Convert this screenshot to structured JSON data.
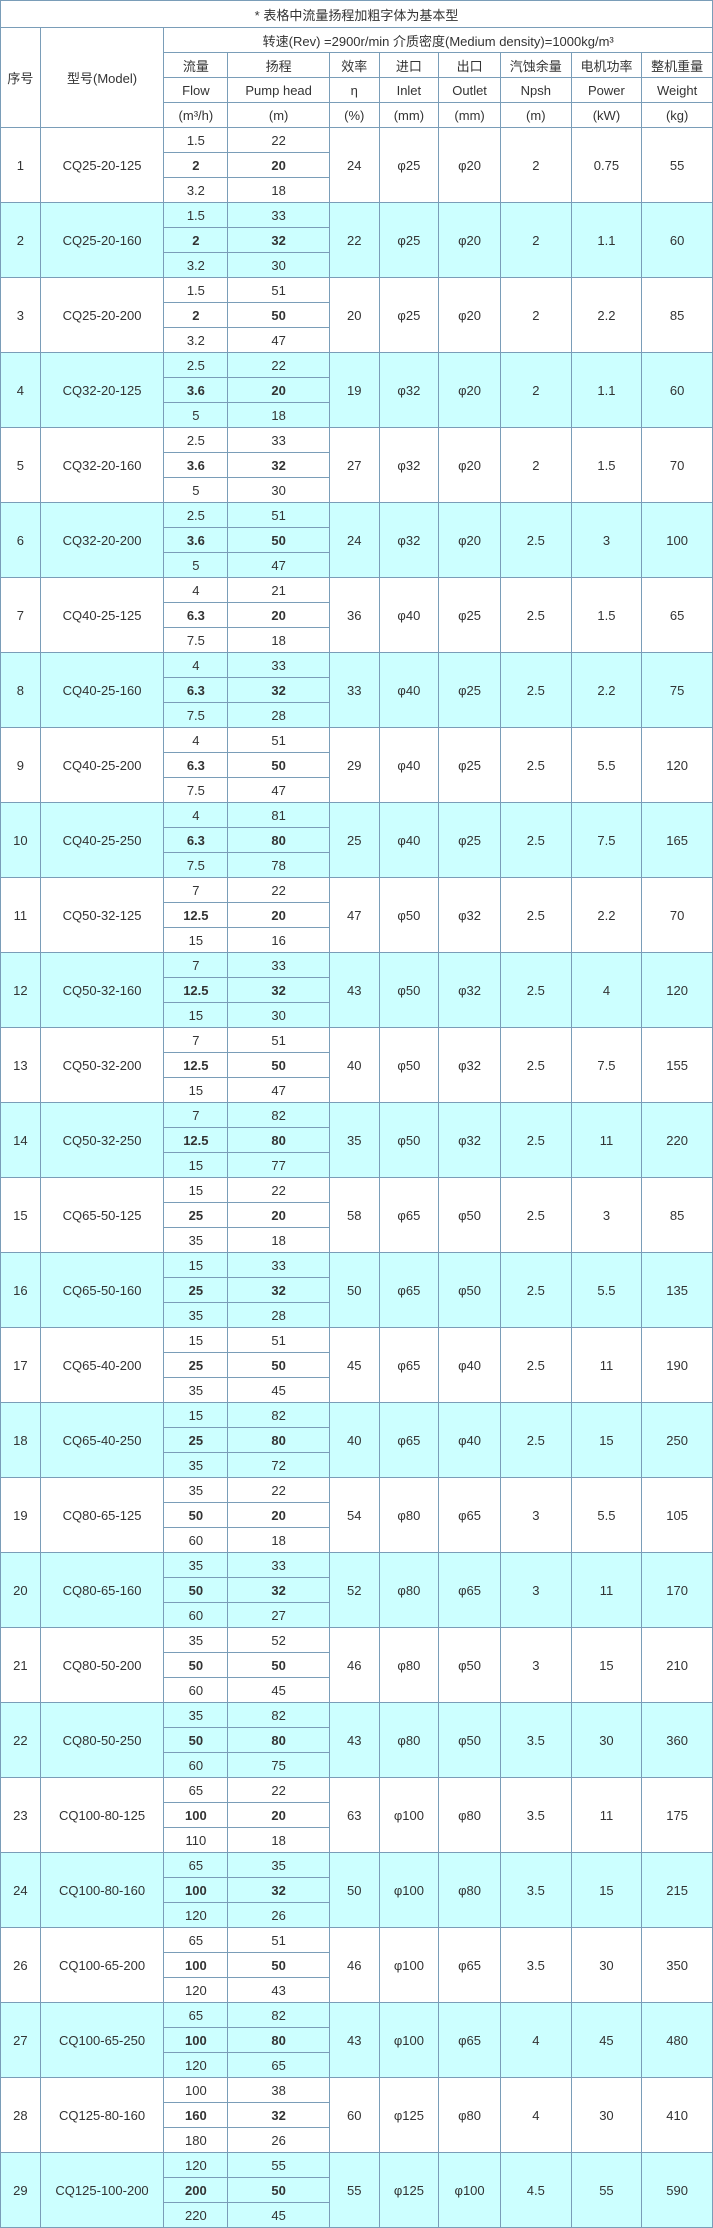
{
  "caption": "* 表格中流量扬程加粗字体为基本型",
  "spec_line": "转速(Rev) =2900r/min   介质密度(Medium density)=1000kg/m³",
  "headers": {
    "h1": "序号",
    "h2": "型号(Model)",
    "c_flow_cn": "流量",
    "c_head_cn": "扬程",
    "c_eff_cn": "效率",
    "c_in_cn": "进口",
    "c_out_cn": "出口",
    "c_npsh_cn": "汽蚀余量",
    "c_pow_cn": "电机功率",
    "c_wt_cn": "整机重量",
    "c_flow_en": "Flow",
    "c_head_en": "Pump head",
    "c_eff_en": "η",
    "c_in_en": "Inlet",
    "c_out_en": "Outlet",
    "c_npsh_en": "Npsh",
    "c_pow_en": "Power",
    "c_wt_en": "Weight",
    "u_flow": "(m³/h)",
    "u_head": "(m)",
    "u_eff": "(%)",
    "u_in": "(mm)",
    "u_out": "(mm)",
    "u_npsh": "(m)",
    "u_pow": "(kW)",
    "u_wt": "(kg)"
  },
  "colors": {
    "border": "#7a9db8",
    "shade": "#ccffff",
    "bg": "#ffffff"
  },
  "rows": [
    {
      "no": "1",
      "model": "CQ25-20-125",
      "flows": [
        "1.5",
        "2",
        "3.2"
      ],
      "heads": [
        "22",
        "20",
        "18"
      ],
      "bold": [
        false,
        true,
        false
      ],
      "eff": "24",
      "in": "φ25",
      "out": "φ20",
      "npsh": "2",
      "pow": "0.75",
      "wt": "55"
    },
    {
      "no": "2",
      "model": "CQ25-20-160",
      "flows": [
        "1.5",
        "2",
        "3.2"
      ],
      "heads": [
        "33",
        "32",
        "30"
      ],
      "bold": [
        false,
        true,
        false
      ],
      "eff": "22",
      "in": "φ25",
      "out": "φ20",
      "npsh": "2",
      "pow": "1.1",
      "wt": "60"
    },
    {
      "no": "3",
      "model": "CQ25-20-200",
      "flows": [
        "1.5",
        "2",
        "3.2"
      ],
      "heads": [
        "51",
        "50",
        "47"
      ],
      "bold": [
        false,
        true,
        false
      ],
      "eff": "20",
      "in": "φ25",
      "out": "φ20",
      "npsh": "2",
      "pow": "2.2",
      "wt": "85"
    },
    {
      "no": "4",
      "model": "CQ32-20-125",
      "flows": [
        "2.5",
        "3.6",
        "5"
      ],
      "heads": [
        "22",
        "20",
        "18"
      ],
      "bold": [
        false,
        true,
        false
      ],
      "eff": "19",
      "in": "φ32",
      "out": "φ20",
      "npsh": "2",
      "pow": "1.1",
      "wt": "60"
    },
    {
      "no": "5",
      "model": "CQ32-20-160",
      "flows": [
        "2.5",
        "3.6",
        "5"
      ],
      "heads": [
        "33",
        "32",
        "30"
      ],
      "bold": [
        false,
        true,
        false
      ],
      "eff": "27",
      "in": "φ32",
      "out": "φ20",
      "npsh": "2",
      "pow": "1.5",
      "wt": "70"
    },
    {
      "no": "6",
      "model": "CQ32-20-200",
      "flows": [
        "2.5",
        "3.6",
        "5"
      ],
      "heads": [
        "51",
        "50",
        "47"
      ],
      "bold": [
        false,
        true,
        false
      ],
      "eff": "24",
      "in": "φ32",
      "out": "φ20",
      "npsh": "2.5",
      "pow": "3",
      "wt": "100"
    },
    {
      "no": "7",
      "model": "CQ40-25-125",
      "flows": [
        "4",
        "6.3",
        "7.5"
      ],
      "heads": [
        "21",
        "20",
        "18"
      ],
      "bold": [
        false,
        true,
        false
      ],
      "eff": "36",
      "in": "φ40",
      "out": "φ25",
      "npsh": "2.5",
      "pow": "1.5",
      "wt": "65"
    },
    {
      "no": "8",
      "model": "CQ40-25-160",
      "flows": [
        "4",
        "6.3",
        "7.5"
      ],
      "heads": [
        "33",
        "32",
        "28"
      ],
      "bold": [
        false,
        true,
        false
      ],
      "eff": "33",
      "in": "φ40",
      "out": "φ25",
      "npsh": "2.5",
      "pow": "2.2",
      "wt": "75"
    },
    {
      "no": "9",
      "model": "CQ40-25-200",
      "flows": [
        "4",
        "6.3",
        "7.5"
      ],
      "heads": [
        "51",
        "50",
        "47"
      ],
      "bold": [
        false,
        true,
        false
      ],
      "eff": "29",
      "in": "φ40",
      "out": "φ25",
      "npsh": "2.5",
      "pow": "5.5",
      "wt": "120"
    },
    {
      "no": "10",
      "model": "CQ40-25-250",
      "flows": [
        "4",
        "6.3",
        "7.5"
      ],
      "heads": [
        "81",
        "80",
        "78"
      ],
      "bold": [
        false,
        true,
        false
      ],
      "eff": "25",
      "in": "φ40",
      "out": "φ25",
      "npsh": "2.5",
      "pow": "7.5",
      "wt": "165"
    },
    {
      "no": "11",
      "model": "CQ50-32-125",
      "flows": [
        "7",
        "12.5",
        "15"
      ],
      "heads": [
        "22",
        "20",
        "16"
      ],
      "bold": [
        false,
        true,
        false
      ],
      "eff": "47",
      "in": "φ50",
      "out": "φ32",
      "npsh": "2.5",
      "pow": "2.2",
      "wt": "70"
    },
    {
      "no": "12",
      "model": "CQ50-32-160",
      "flows": [
        "7",
        "12.5",
        "15"
      ],
      "heads": [
        "33",
        "32",
        "30"
      ],
      "bold": [
        false,
        true,
        false
      ],
      "eff": "43",
      "in": "φ50",
      "out": "φ32",
      "npsh": "2.5",
      "pow": "4",
      "wt": "120"
    },
    {
      "no": "13",
      "model": "CQ50-32-200",
      "flows": [
        "7",
        "12.5",
        "15"
      ],
      "heads": [
        "51",
        "50",
        "47"
      ],
      "bold": [
        false,
        true,
        false
      ],
      "eff": "40",
      "in": "φ50",
      "out": "φ32",
      "npsh": "2.5",
      "pow": "7.5",
      "wt": "155"
    },
    {
      "no": "14",
      "model": "CQ50-32-250",
      "flows": [
        "7",
        "12.5",
        "15"
      ],
      "heads": [
        "82",
        "80",
        "77"
      ],
      "bold": [
        false,
        true,
        false
      ],
      "eff": "35",
      "in": "φ50",
      "out": "φ32",
      "npsh": "2.5",
      "pow": "11",
      "wt": "220"
    },
    {
      "no": "15",
      "model": "CQ65-50-125",
      "flows": [
        "15",
        "25",
        "35"
      ],
      "heads": [
        "22",
        "20",
        "18"
      ],
      "bold": [
        false,
        true,
        false
      ],
      "eff": "58",
      "in": "φ65",
      "out": "φ50",
      "npsh": "2.5",
      "pow": "3",
      "wt": "85"
    },
    {
      "no": "16",
      "model": "CQ65-50-160",
      "flows": [
        "15",
        "25",
        "35"
      ],
      "heads": [
        "33",
        "32",
        "28"
      ],
      "bold": [
        false,
        true,
        false
      ],
      "eff": "50",
      "in": "φ65",
      "out": "φ50",
      "npsh": "2.5",
      "pow": "5.5",
      "wt": "135"
    },
    {
      "no": "17",
      "model": "CQ65-40-200",
      "flows": [
        "15",
        "25",
        "35"
      ],
      "heads": [
        "51",
        "50",
        "45"
      ],
      "bold": [
        false,
        true,
        false
      ],
      "eff": "45",
      "in": "φ65",
      "out": "φ40",
      "npsh": "2.5",
      "pow": "11",
      "wt": "190"
    },
    {
      "no": "18",
      "model": "CQ65-40-250",
      "flows": [
        "15",
        "25",
        "35"
      ],
      "heads": [
        "82",
        "80",
        "72"
      ],
      "bold": [
        false,
        true,
        false
      ],
      "eff": "40",
      "in": "φ65",
      "out": "φ40",
      "npsh": "2.5",
      "pow": "15",
      "wt": "250"
    },
    {
      "no": "19",
      "model": "CQ80-65-125",
      "flows": [
        "35",
        "50",
        "60"
      ],
      "heads": [
        "22",
        "20",
        "18"
      ],
      "bold": [
        false,
        true,
        false
      ],
      "eff": "54",
      "in": "φ80",
      "out": "φ65",
      "npsh": "3",
      "pow": "5.5",
      "wt": "105"
    },
    {
      "no": "20",
      "model": "CQ80-65-160",
      "flows": [
        "35",
        "50",
        "60"
      ],
      "heads": [
        "33",
        "32",
        "27"
      ],
      "bold": [
        false,
        true,
        false
      ],
      "eff": "52",
      "in": "φ80",
      "out": "φ65",
      "npsh": "3",
      "pow": "11",
      "wt": "170"
    },
    {
      "no": "21",
      "model": "CQ80-50-200",
      "flows": [
        "35",
        "50",
        "60"
      ],
      "heads": [
        "52",
        "50",
        "45"
      ],
      "bold": [
        false,
        true,
        false
      ],
      "eff": "46",
      "in": "φ80",
      "out": "φ50",
      "npsh": "3",
      "pow": "15",
      "wt": "210"
    },
    {
      "no": "22",
      "model": "CQ80-50-250",
      "flows": [
        "35",
        "50",
        "60"
      ],
      "heads": [
        "82",
        "80",
        "75"
      ],
      "bold": [
        false,
        true,
        false
      ],
      "eff": "43",
      "in": "φ80",
      "out": "φ50",
      "npsh": "3.5",
      "pow": "30",
      "wt": "360"
    },
    {
      "no": "23",
      "model": "CQ100-80-125",
      "flows": [
        "65",
        "100",
        "110"
      ],
      "heads": [
        "22",
        "20",
        "18"
      ],
      "bold": [
        false,
        true,
        false
      ],
      "eff": "63",
      "in": "φ100",
      "out": "φ80",
      "npsh": "3.5",
      "pow": "11",
      "wt": "175"
    },
    {
      "no": "24",
      "model": "CQ100-80-160",
      "flows": [
        "65",
        "100",
        "120"
      ],
      "heads": [
        "35",
        "32",
        "26"
      ],
      "bold": [
        false,
        true,
        false
      ],
      "eff": "50",
      "in": "φ100",
      "out": "φ80",
      "npsh": "3.5",
      "pow": "15",
      "wt": "215"
    },
    {
      "no": "26",
      "model": "CQ100-65-200",
      "flows": [
        "65",
        "100",
        "120"
      ],
      "heads": [
        "51",
        "50",
        "43"
      ],
      "bold": [
        false,
        true,
        false
      ],
      "eff": "46",
      "in": "φ100",
      "out": "φ65",
      "npsh": "3.5",
      "pow": "30",
      "wt": "350"
    },
    {
      "no": "27",
      "model": "CQ100-65-250",
      "flows": [
        "65",
        "100",
        "120"
      ],
      "heads": [
        "82",
        "80",
        "65"
      ],
      "bold": [
        false,
        true,
        false
      ],
      "eff": "43",
      "in": "φ100",
      "out": "φ65",
      "npsh": "4",
      "pow": "45",
      "wt": "480"
    },
    {
      "no": "28",
      "model": "CQ125-80-160",
      "flows": [
        "100",
        "160",
        "180"
      ],
      "heads": [
        "38",
        "32",
        "26"
      ],
      "bold": [
        false,
        true,
        false
      ],
      "eff": "60",
      "in": "φ125",
      "out": "φ80",
      "npsh": "4",
      "pow": "30",
      "wt": "410"
    },
    {
      "no": "29",
      "model": "CQ125-100-200",
      "flows": [
        "120",
        "200",
        "220"
      ],
      "heads": [
        "55",
        "50",
        "45"
      ],
      "bold": [
        false,
        true,
        false
      ],
      "eff": "55",
      "in": "φ125",
      "out": "φ100",
      "npsh": "4.5",
      "pow": "55",
      "wt": "590"
    }
  ]
}
